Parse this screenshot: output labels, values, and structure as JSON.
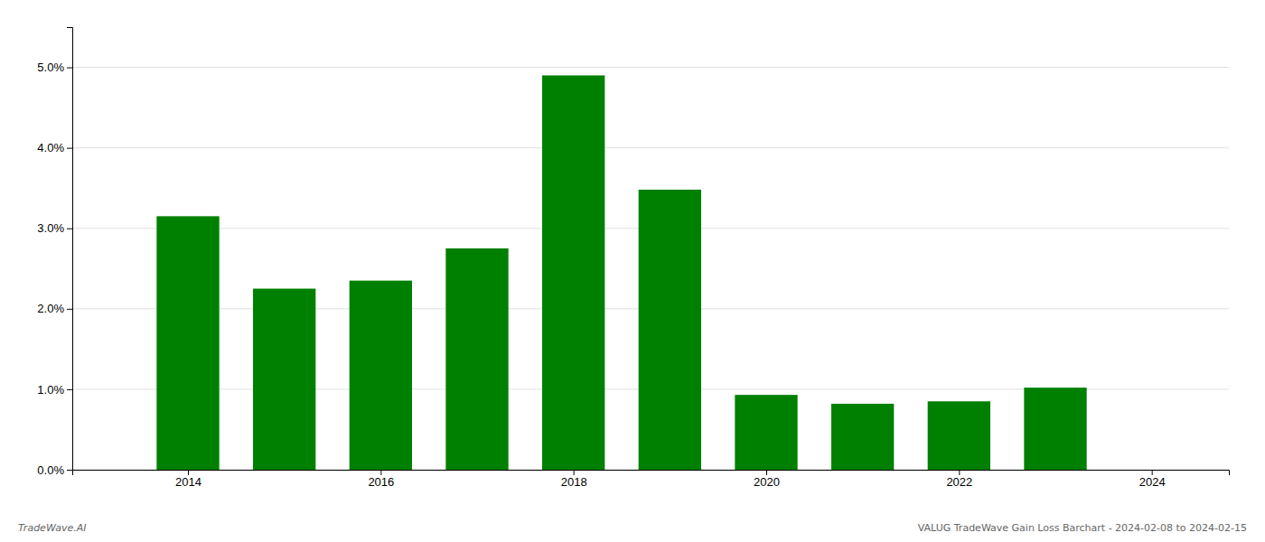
{
  "chart_data": {
    "type": "bar",
    "x": [
      2014,
      2015,
      2016,
      2017,
      2018,
      2019,
      2020,
      2021,
      2022,
      2023
    ],
    "values": [
      0.0315,
      0.0225,
      0.0235,
      0.0275,
      0.049,
      0.0348,
      0.0093,
      0.0082,
      0.0085,
      0.0102
    ],
    "color": "#008000",
    "xlim": [
      2012.8,
      2024.8
    ],
    "xticks": [
      2014,
      2016,
      2018,
      2020,
      2022,
      2024
    ],
    "ylim": [
      0.0,
      0.055
    ],
    "yticks": [
      {
        "value": 0.0,
        "label": "0.0%"
      },
      {
        "value": 0.01,
        "label": "1.0%"
      },
      {
        "value": 0.02,
        "label": "2.0%"
      },
      {
        "value": 0.03,
        "label": "3.0%"
      },
      {
        "value": 0.04,
        "label": "4.0%"
      },
      {
        "value": 0.05,
        "label": "5.0%"
      }
    ],
    "grid": true,
    "annotations": [
      "TradeWave.AI",
      "VALUG TradeWave Gain Loss Barchart - 2024-02-08 to 2024-02-15"
    ]
  }
}
